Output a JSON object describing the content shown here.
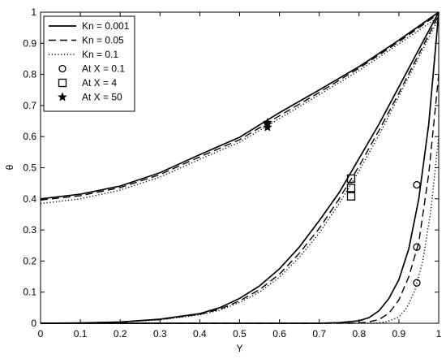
{
  "chart_data": {
    "type": "line",
    "xlabel": "Y",
    "ylabel": "θ",
    "xlim": [
      0,
      1
    ],
    "ylim": [
      0,
      1
    ],
    "xticks": [
      0,
      0.1,
      0.2,
      0.3,
      0.4,
      0.5,
      0.6,
      0.7,
      0.8,
      0.9,
      1
    ],
    "yticks": [
      0,
      0.1,
      0.2,
      0.3,
      0.4,
      0.5,
      0.6,
      0.7,
      0.8,
      0.9,
      1
    ],
    "grid": false,
    "legend_position": "top-left",
    "legend": [
      {
        "label": "Kn = 0.001",
        "line": "solid"
      },
      {
        "label": "Kn = 0.05",
        "line": "dashed"
      },
      {
        "label": "Kn = 0.1",
        "line": "dotted"
      },
      {
        "label": "At X = 0.1",
        "marker": "circle"
      },
      {
        "label": "At X = 4",
        "marker": "square"
      },
      {
        "label": "At X = 50",
        "marker": "star"
      }
    ],
    "series": [
      {
        "kn": "0.001",
        "x_position": "50",
        "style": "solid",
        "x": [
          0,
          0.1,
          0.2,
          0.3,
          0.4,
          0.5,
          0.6,
          0.7,
          0.8,
          0.9,
          1
        ],
        "y": [
          0.4,
          0.415,
          0.441,
          0.484,
          0.542,
          0.598,
          0.677,
          0.75,
          0.825,
          0.91,
          1
        ]
      },
      {
        "kn": "0.05",
        "x_position": "50",
        "style": "dashed",
        "x": [
          0,
          0.1,
          0.2,
          0.3,
          0.4,
          0.5,
          0.6,
          0.7,
          0.8,
          0.9,
          1
        ],
        "y": [
          0.396,
          0.41,
          0.436,
          0.478,
          0.535,
          0.59,
          0.667,
          0.742,
          0.82,
          0.905,
          0.995
        ]
      },
      {
        "kn": "0.1",
        "x_position": "50",
        "style": "dotted",
        "x": [
          0,
          0.1,
          0.2,
          0.3,
          0.4,
          0.5,
          0.6,
          0.7,
          0.8,
          0.9,
          1
        ],
        "y": [
          0.385,
          0.4,
          0.428,
          0.47,
          0.527,
          0.582,
          0.658,
          0.735,
          0.812,
          0.898,
          0.985
        ]
      },
      {
        "kn": "0.001",
        "x_position": "4",
        "style": "solid",
        "x": [
          0,
          0.1,
          0.2,
          0.3,
          0.4,
          0.45,
          0.5,
          0.55,
          0.6,
          0.65,
          0.7,
          0.75,
          0.8,
          0.85,
          0.9,
          0.95,
          1
        ],
        "y": [
          0,
          0.001,
          0.004,
          0.013,
          0.031,
          0.05,
          0.08,
          0.12,
          0.175,
          0.245,
          0.33,
          0.42,
          0.53,
          0.64,
          0.76,
          0.88,
          1
        ]
      },
      {
        "kn": "0.05",
        "x_position": "4",
        "style": "dashed",
        "x": [
          0,
          0.1,
          0.2,
          0.3,
          0.4,
          0.45,
          0.5,
          0.55,
          0.6,
          0.65,
          0.7,
          0.75,
          0.8,
          0.85,
          0.9,
          0.95,
          1
        ],
        "y": [
          0,
          0.001,
          0.004,
          0.012,
          0.029,
          0.045,
          0.072,
          0.108,
          0.158,
          0.225,
          0.305,
          0.4,
          0.505,
          0.62,
          0.74,
          0.865,
          0.99
        ]
      },
      {
        "kn": "0.1",
        "x_position": "4",
        "style": "dotted",
        "x": [
          0,
          0.1,
          0.2,
          0.3,
          0.4,
          0.45,
          0.5,
          0.55,
          0.6,
          0.65,
          0.7,
          0.75,
          0.8,
          0.85,
          0.9,
          0.95,
          1
        ],
        "y": [
          0,
          0.001,
          0.004,
          0.011,
          0.027,
          0.042,
          0.067,
          0.1,
          0.148,
          0.212,
          0.29,
          0.385,
          0.49,
          0.605,
          0.73,
          0.855,
          0.98
        ]
      },
      {
        "kn": "0.001",
        "x_position": "0.1",
        "style": "solid",
        "x": [
          0,
          0.7,
          0.75,
          0.8,
          0.825,
          0.85,
          0.875,
          0.9,
          0.925,
          0.95,
          0.975,
          1
        ],
        "y": [
          0,
          0,
          0.002,
          0.008,
          0.018,
          0.04,
          0.08,
          0.14,
          0.24,
          0.4,
          0.64,
          1
        ]
      },
      {
        "kn": "0.05",
        "x_position": "0.1",
        "style": "dashed",
        "x": [
          0,
          0.78,
          0.82,
          0.85,
          0.875,
          0.9,
          0.925,
          0.95,
          0.975,
          1
        ],
        "y": [
          0,
          0,
          0.003,
          0.012,
          0.032,
          0.075,
          0.15,
          0.26,
          0.48,
          0.8
        ]
      },
      {
        "kn": "0.1",
        "x_position": "0.1",
        "style": "dotted",
        "x": [
          0,
          0.84,
          0.87,
          0.9,
          0.92,
          0.94,
          0.96,
          0.98,
          1
        ],
        "y": [
          0,
          0,
          0.005,
          0.02,
          0.05,
          0.105,
          0.2,
          0.36,
          0.6
        ]
      }
    ],
    "markers": [
      {
        "shape": "star",
        "x": 0.57,
        "y": 0.645
      },
      {
        "shape": "star",
        "x": 0.57,
        "y": 0.64
      },
      {
        "shape": "star",
        "x": 0.57,
        "y": 0.63
      },
      {
        "shape": "square",
        "x": 0.78,
        "y": 0.465
      },
      {
        "shape": "square",
        "x": 0.78,
        "y": 0.435
      },
      {
        "shape": "square",
        "x": 0.78,
        "y": 0.408
      },
      {
        "shape": "circle",
        "x": 0.945,
        "y": 0.445
      },
      {
        "shape": "circle",
        "x": 0.945,
        "y": 0.245
      },
      {
        "shape": "circle",
        "x": 0.945,
        "y": 0.13
      }
    ]
  }
}
